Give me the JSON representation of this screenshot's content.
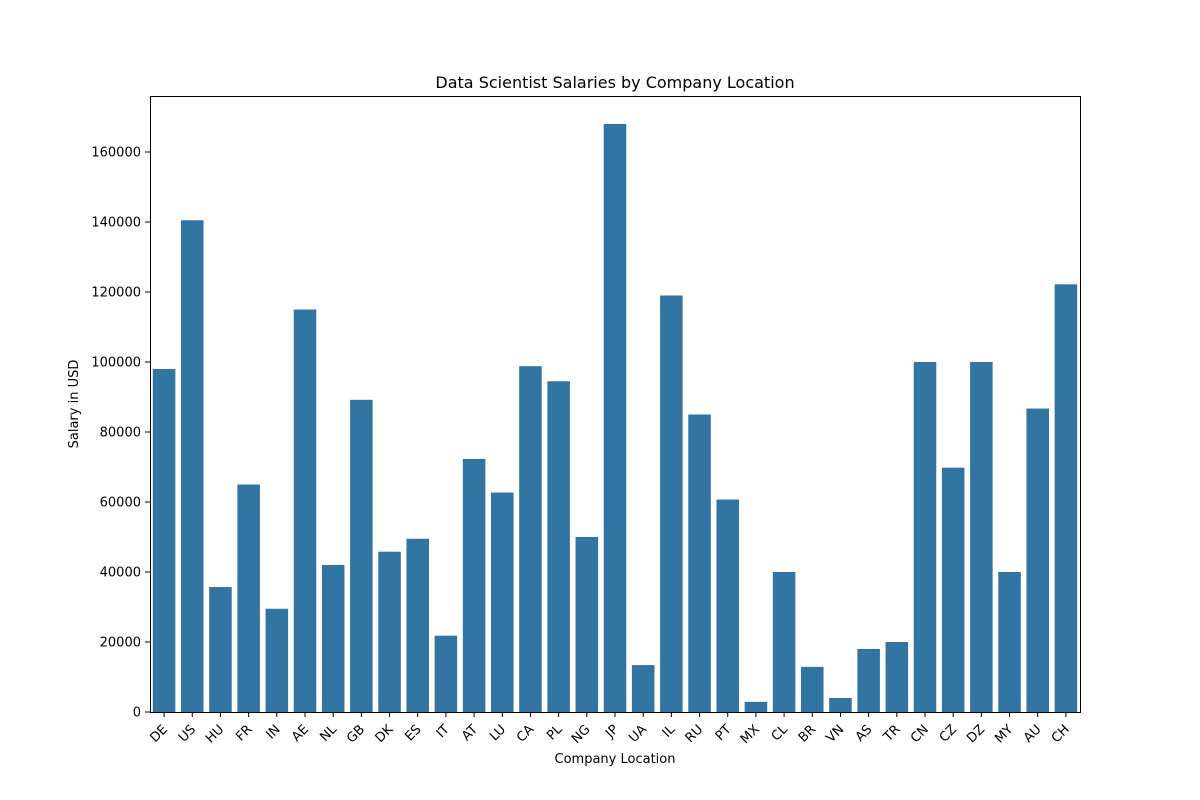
{
  "chart_data": {
    "type": "bar",
    "title": "Data Scientist Salaries by Company Location",
    "xlabel": "Company Location",
    "ylabel": "Salary in USD",
    "categories": [
      "DE",
      "US",
      "HU",
      "FR",
      "IN",
      "AE",
      "NL",
      "GB",
      "DK",
      "ES",
      "IT",
      "AT",
      "LU",
      "CA",
      "PL",
      "NG",
      "JP",
      "UA",
      "IL",
      "RU",
      "PT",
      "MX",
      "CL",
      "BR",
      "VN",
      "AS",
      "TR",
      "CN",
      "CZ",
      "DZ",
      "MY",
      "AU",
      "CH"
    ],
    "values": [
      98000,
      140500,
      35700,
      65000,
      29500,
      115000,
      42000,
      89200,
      45800,
      49500,
      21800,
      72300,
      62700,
      98800,
      94500,
      50000,
      168000,
      13400,
      119000,
      85000,
      60700,
      2900,
      40000,
      12900,
      4000,
      18000,
      20000,
      100000,
      69800,
      100000,
      40000,
      86700,
      122200
    ],
    "ylim": [
      0,
      176000
    ],
    "yticks": [
      0,
      20000,
      40000,
      60000,
      80000,
      100000,
      120000,
      140000,
      160000
    ],
    "grid": false,
    "bar_color": "#3274a1"
  }
}
